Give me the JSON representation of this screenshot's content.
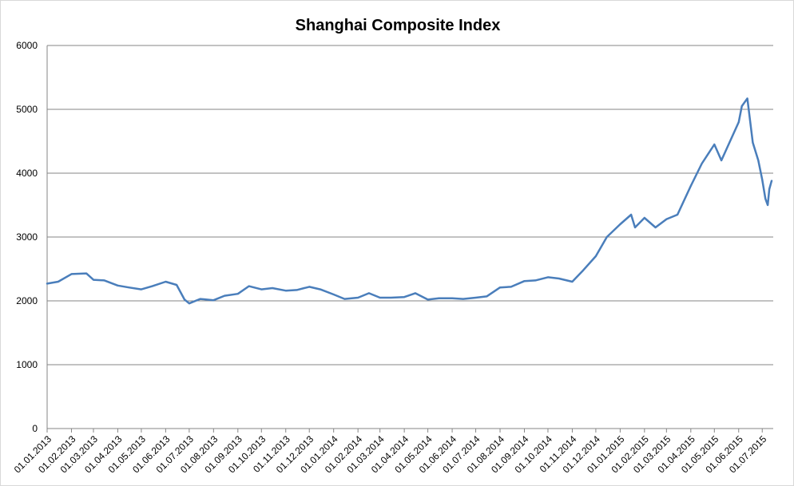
{
  "chart_data": {
    "type": "line",
    "title": "Shanghai Composite Index",
    "xlabel": "",
    "ylabel": "",
    "ylim": [
      0,
      6000
    ],
    "yticks": [
      "0",
      "1000",
      "2000",
      "3000",
      "4000",
      "5000",
      "6000"
    ],
    "xticks": [
      "01.01.2013",
      "01.02.2013",
      "01.03.2013",
      "01.04.2013",
      "01.05.2013",
      "01.06.2013",
      "01.07.2013",
      "01.08.2013",
      "01.09.2013",
      "01.10.2013",
      "01.11.2013",
      "01.12.2013",
      "01.01.2014",
      "01.02.2014",
      "01.03.2014",
      "01.04.2014",
      "01.05.2014",
      "01.06.2014",
      "01.07.2014",
      "01.08.2014",
      "01.09.2014",
      "01.10.2014",
      "01.11.2014",
      "01.12.2014",
      "01.01.2015",
      "01.02.2015",
      "01.03.2015",
      "01.04.2015",
      "01.05.2015",
      "01.06.2015",
      "01.07.2015"
    ],
    "grid": "horizontal",
    "legend": "none",
    "line_color": "#4a7ebb",
    "series": [
      {
        "name": "",
        "x": [
          "01.01.2013",
          "15.01.2013",
          "01.02.2013",
          "20.02.2013",
          "01.03.2013",
          "15.03.2013",
          "01.04.2013",
          "15.04.2013",
          "01.05.2013",
          "15.05.2013",
          "01.06.2013",
          "15.06.2013",
          "25.06.2013",
          "01.07.2013",
          "15.07.2013",
          "01.08.2013",
          "15.08.2013",
          "01.09.2013",
          "15.09.2013",
          "01.10.2013",
          "15.10.2013",
          "01.11.2013",
          "15.11.2013",
          "01.12.2013",
          "15.12.2013",
          "01.01.2014",
          "15.01.2014",
          "01.02.2014",
          "15.02.2014",
          "01.03.2014",
          "15.03.2014",
          "01.04.2014",
          "15.04.2014",
          "01.05.2014",
          "15.05.2014",
          "01.06.2014",
          "15.06.2014",
          "01.07.2014",
          "15.07.2014",
          "01.08.2014",
          "15.08.2014",
          "01.09.2014",
          "15.09.2014",
          "01.10.2014",
          "15.10.2014",
          "01.11.2014",
          "15.11.2014",
          "01.12.2014",
          "15.12.2014",
          "01.01.2015",
          "15.01.2015",
          "20.01.2015",
          "01.02.2015",
          "15.02.2015",
          "01.03.2015",
          "15.03.2015",
          "01.04.2015",
          "15.04.2015",
          "01.05.2015",
          "10.05.2015",
          "01.06.2015",
          "05.06.2015",
          "12.06.2015",
          "19.06.2015",
          "26.06.2015",
          "01.07.2015",
          "05.07.2015",
          "08.07.2015",
          "10.07.2015",
          "13.07.2015"
        ],
        "y": [
          2270,
          2300,
          2420,
          2430,
          2330,
          2320,
          2240,
          2210,
          2180,
          2230,
          2300,
          2250,
          2020,
          1960,
          2030,
          2010,
          2080,
          2110,
          2230,
          2180,
          2200,
          2160,
          2170,
          2220,
          2180,
          2100,
          2030,
          2050,
          2120,
          2050,
          2050,
          2060,
          2120,
          2020,
          2040,
          2040,
          2030,
          2050,
          2070,
          2210,
          2220,
          2310,
          2320,
          2370,
          2350,
          2300,
          2480,
          2700,
          3000,
          3200,
          3350,
          3150,
          3300,
          3150,
          3280,
          3350,
          3800,
          4150,
          4450,
          4200,
          4800,
          5050,
          5170,
          4480,
          4200,
          3900,
          3600,
          3500,
          3750,
          3880
        ]
      }
    ]
  }
}
